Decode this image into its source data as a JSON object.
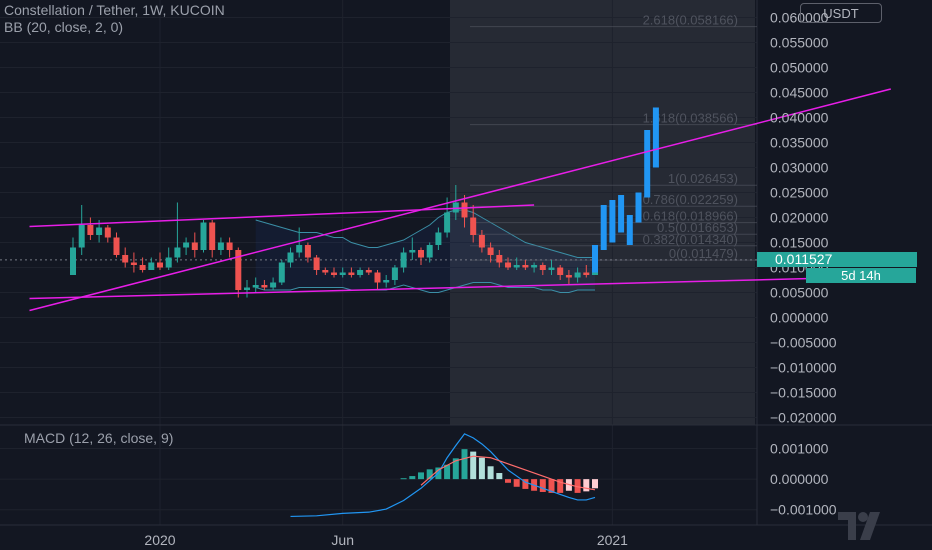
{
  "header": {
    "symbol_line": "Constellation / Tether, 1W, KUCOIN",
    "indicator_line": "BB (20, close, 2, 0)"
  },
  "currency_button": "USDT",
  "last_price_label": "0.011527",
  "countdown_label": "5d 14h",
  "macd_label": "MACD (12, 26, close, 9)",
  "colors": {
    "background": "#131722",
    "up": "#26a69a",
    "down": "#ef5350",
    "projection": "#2196f3",
    "trendline": "#e81ee8",
    "bb_band": "#3b8fa6",
    "macd_line": "#2196f3",
    "signal_line": "#ff6d6d",
    "text": "#b2b5be"
  },
  "chart_data": [
    {
      "type": "candlestick",
      "title": "Constellation / Tether, 1W, KUCOIN",
      "y_axis_labels": [
        "0.060000",
        "0.055000",
        "0.050000",
        "0.045000",
        "0.040000",
        "0.035000",
        "0.030000",
        "0.025000",
        "0.020000",
        "0.015000",
        "0.010000",
        "0.005000",
        "0.000000",
        "−0.005000",
        "−0.010000",
        "−0.015000",
        "−0.020000"
      ],
      "y_axis_values": [
        0.06,
        0.055,
        0.05,
        0.045,
        0.04,
        0.035,
        0.03,
        0.025,
        0.02,
        0.015,
        0.01,
        0.005,
        0,
        -0.005,
        -0.01,
        -0.015,
        -0.02
      ],
      "ylim": [
        -0.0215,
        0.0635
      ],
      "x_ticks": [
        {
          "label": "2020",
          "week": 10
        },
        {
          "label": "Jun",
          "week": 31
        },
        {
          "label": "2021",
          "week": 62
        }
      ],
      "last_price": 0.011527,
      "candles": [
        {
          "week": 0,
          "open": 0.0085,
          "close": 0.014,
          "high": 0.016,
          "low": 0.0085
        },
        {
          "week": 1,
          "open": 0.014,
          "close": 0.0185,
          "high": 0.0225,
          "low": 0.0125
        },
        {
          "week": 2,
          "open": 0.0185,
          "close": 0.0165,
          "high": 0.02,
          "low": 0.0155
        },
        {
          "week": 3,
          "open": 0.0165,
          "close": 0.018,
          "high": 0.0195,
          "low": 0.015
        },
        {
          "week": 4,
          "open": 0.018,
          "close": 0.016,
          "high": 0.0185,
          "low": 0.015
        },
        {
          "week": 5,
          "open": 0.016,
          "close": 0.0125,
          "high": 0.017,
          "low": 0.012
        },
        {
          "week": 6,
          "open": 0.0125,
          "close": 0.011,
          "high": 0.014,
          "low": 0.01
        },
        {
          "week": 7,
          "open": 0.011,
          "close": 0.0105,
          "high": 0.013,
          "low": 0.009
        },
        {
          "week": 8,
          "open": 0.0105,
          "close": 0.0095,
          "high": 0.012,
          "low": 0.009
        },
        {
          "week": 9,
          "open": 0.0095,
          "close": 0.011,
          "high": 0.012,
          "low": 0.0095
        },
        {
          "week": 10,
          "open": 0.011,
          "close": 0.01,
          "high": 0.013,
          "low": 0.0095
        },
        {
          "week": 11,
          "open": 0.01,
          "close": 0.012,
          "high": 0.014,
          "low": 0.0095
        },
        {
          "week": 12,
          "open": 0.012,
          "close": 0.014,
          "high": 0.023,
          "low": 0.011
        },
        {
          "week": 13,
          "open": 0.014,
          "close": 0.015,
          "high": 0.016,
          "low": 0.0125
        },
        {
          "week": 14,
          "open": 0.015,
          "close": 0.0135,
          "high": 0.017,
          "low": 0.012
        },
        {
          "week": 15,
          "open": 0.0135,
          "close": 0.019,
          "high": 0.0195,
          "low": 0.013
        },
        {
          "week": 16,
          "open": 0.019,
          "close": 0.0135,
          "high": 0.0195,
          "low": 0.012
        },
        {
          "week": 17,
          "open": 0.0135,
          "close": 0.015,
          "high": 0.016,
          "low": 0.0125
        },
        {
          "week": 18,
          "open": 0.015,
          "close": 0.0135,
          "high": 0.016,
          "low": 0.012
        },
        {
          "week": 19,
          "open": 0.0135,
          "close": 0.0055,
          "high": 0.014,
          "low": 0.004
        },
        {
          "week": 20,
          "open": 0.0055,
          "close": 0.006,
          "high": 0.0075,
          "low": 0.004
        },
        {
          "week": 21,
          "open": 0.006,
          "close": 0.0065,
          "high": 0.008,
          "low": 0.005
        },
        {
          "week": 22,
          "open": 0.0065,
          "close": 0.006,
          "high": 0.0075,
          "low": 0.0055
        },
        {
          "week": 23,
          "open": 0.006,
          "close": 0.007,
          "high": 0.008,
          "low": 0.0055
        },
        {
          "week": 24,
          "open": 0.007,
          "close": 0.011,
          "high": 0.0115,
          "low": 0.0065
        },
        {
          "week": 25,
          "open": 0.011,
          "close": 0.013,
          "high": 0.014,
          "low": 0.01
        },
        {
          "week": 26,
          "open": 0.013,
          "close": 0.0145,
          "high": 0.018,
          "low": 0.012
        },
        {
          "week": 27,
          "open": 0.0145,
          "close": 0.012,
          "high": 0.015,
          "low": 0.011
        },
        {
          "week": 28,
          "open": 0.012,
          "close": 0.0095,
          "high": 0.0125,
          "low": 0.0085
        },
        {
          "week": 29,
          "open": 0.0095,
          "close": 0.009,
          "high": 0.01,
          "low": 0.0085
        },
        {
          "week": 30,
          "open": 0.009,
          "close": 0.0085,
          "high": 0.01,
          "low": 0.008
        },
        {
          "week": 31,
          "open": 0.0085,
          "close": 0.009,
          "high": 0.01,
          "low": 0.008
        },
        {
          "week": 32,
          "open": 0.009,
          "close": 0.0085,
          "high": 0.01,
          "low": 0.008
        },
        {
          "week": 33,
          "open": 0.0085,
          "close": 0.0095,
          "high": 0.01,
          "low": 0.008
        },
        {
          "week": 34,
          "open": 0.0095,
          "close": 0.009,
          "high": 0.01,
          "low": 0.0085
        },
        {
          "week": 35,
          "open": 0.009,
          "close": 0.007,
          "high": 0.0095,
          "low": 0.0055
        },
        {
          "week": 36,
          "open": 0.007,
          "close": 0.0075,
          "high": 0.0085,
          "low": 0.006
        },
        {
          "week": 37,
          "open": 0.0075,
          "close": 0.01,
          "high": 0.0105,
          "low": 0.0065
        },
        {
          "week": 38,
          "open": 0.01,
          "close": 0.013,
          "high": 0.014,
          "low": 0.009
        },
        {
          "week": 39,
          "open": 0.013,
          "close": 0.0135,
          "high": 0.016,
          "low": 0.0115
        },
        {
          "week": 40,
          "open": 0.0135,
          "close": 0.012,
          "high": 0.014,
          "low": 0.0105
        },
        {
          "week": 41,
          "open": 0.012,
          "close": 0.0145,
          "high": 0.015,
          "low": 0.011
        },
        {
          "week": 42,
          "open": 0.0145,
          "close": 0.017,
          "high": 0.018,
          "low": 0.0135
        },
        {
          "week": 43,
          "open": 0.017,
          "close": 0.021,
          "high": 0.024,
          "low": 0.016
        },
        {
          "week": 44,
          "open": 0.021,
          "close": 0.023,
          "high": 0.0265,
          "low": 0.0195
        },
        {
          "week": 45,
          "open": 0.023,
          "close": 0.02,
          "high": 0.0245,
          "low": 0.018
        },
        {
          "week": 46,
          "open": 0.02,
          "close": 0.0165,
          "high": 0.0225,
          "low": 0.015
        },
        {
          "week": 47,
          "open": 0.0165,
          "close": 0.014,
          "high": 0.0175,
          "low": 0.013
        },
        {
          "week": 48,
          "open": 0.014,
          "close": 0.0125,
          "high": 0.015,
          "low": 0.011
        },
        {
          "week": 49,
          "open": 0.0125,
          "close": 0.011,
          "high": 0.0135,
          "low": 0.01
        },
        {
          "week": 50,
          "open": 0.011,
          "close": 0.01,
          "high": 0.012,
          "low": 0.0095
        },
        {
          "week": 51,
          "open": 0.01,
          "close": 0.0105,
          "high": 0.012,
          "low": 0.0095
        },
        {
          "week": 52,
          "open": 0.0105,
          "close": 0.01,
          "high": 0.0115,
          "low": 0.0095
        },
        {
          "week": 53,
          "open": 0.01,
          "close": 0.0105,
          "high": 0.011,
          "low": 0.009
        },
        {
          "week": 54,
          "open": 0.0105,
          "close": 0.0095,
          "high": 0.011,
          "low": 0.0085
        },
        {
          "week": 55,
          "open": 0.0095,
          "close": 0.01,
          "high": 0.0115,
          "low": 0.0085
        },
        {
          "week": 56,
          "open": 0.01,
          "close": 0.0085,
          "high": 0.0105,
          "low": 0.0075
        },
        {
          "week": 57,
          "open": 0.0085,
          "close": 0.008,
          "high": 0.0095,
          "low": 0.0065
        },
        {
          "week": 58,
          "open": 0.008,
          "close": 0.009,
          "high": 0.01,
          "low": 0.007
        },
        {
          "week": 59,
          "open": 0.009,
          "close": 0.0085,
          "high": 0.0105,
          "low": 0.008
        },
        {
          "week": 60,
          "open": 0.0085,
          "close": 0.0115,
          "high": 0.0125,
          "low": 0.0085
        }
      ],
      "projection_bars": [
        {
          "week": 60,
          "low": 0.009,
          "high": 0.0145
        },
        {
          "week": 61,
          "low": 0.0135,
          "high": 0.0225
        },
        {
          "week": 62,
          "low": 0.015,
          "high": 0.0235
        },
        {
          "week": 63,
          "low": 0.017,
          "high": 0.0245
        },
        {
          "week": 64,
          "low": 0.0145,
          "high": 0.0205
        },
        {
          "week": 65,
          "low": 0.019,
          "high": 0.025
        },
        {
          "week": 66,
          "low": 0.024,
          "high": 0.0375
        },
        {
          "week": 67,
          "low": 0.03,
          "high": 0.042
        }
      ],
      "fibonacci_labels": [
        {
          "label": "2.618(0.058166)",
          "value": 0.058166
        },
        {
          "label": "1.618(0.038566)",
          "value": 0.038566
        },
        {
          "label": "1(0.026453)",
          "value": 0.026453
        },
        {
          "label": "0.786(0.022259)",
          "value": 0.022259
        },
        {
          "label": "0.618(0.018966)",
          "value": 0.018966
        },
        {
          "label": "0.5(0.016653)",
          "value": 0.016653
        },
        {
          "label": "0.382(0.014340)",
          "value": 0.01434
        },
        {
          "label": "0(0.011479)",
          "value": 0.011479
        }
      ],
      "trendlines": [
        {
          "from": [
            -5,
            0.0038
          ],
          "to": [
            94,
            0.0082
          ]
        },
        {
          "from": [
            -5,
            0.0014
          ],
          "to": [
            94,
            0.0457
          ]
        },
        {
          "from": [
            -5,
            0.0182
          ],
          "to": [
            53,
            0.0225
          ]
        }
      ],
      "bollinger": {
        "start_week": 21,
        "upper": [
          0.0195,
          0.019,
          0.0185,
          0.018,
          0.0175,
          0.017,
          0.017,
          0.017,
          0.0165,
          0.016,
          0.016,
          0.015,
          0.0145,
          0.014,
          0.014,
          0.0145,
          0.015,
          0.0155,
          0.0165,
          0.0175,
          0.0185,
          0.02,
          0.021,
          0.0215,
          0.0215,
          0.021,
          0.02,
          0.019,
          0.018,
          0.017,
          0.016,
          0.015,
          0.0145,
          0.014,
          0.0135,
          0.013,
          0.0125,
          0.012,
          0.012,
          0.012
        ],
        "lower": [
          0.006,
          0.0055,
          0.0055,
          0.0055,
          0.0055,
          0.006,
          0.006,
          0.006,
          0.006,
          0.006,
          0.006,
          0.0055,
          0.0055,
          0.0055,
          0.0055,
          0.0055,
          0.006,
          0.0065,
          0.006,
          0.0055,
          0.005,
          0.005,
          0.0055,
          0.006,
          0.0065,
          0.007,
          0.007,
          0.007,
          0.0065,
          0.006,
          0.006,
          0.006,
          0.006,
          0.0055,
          0.0055,
          0.005,
          0.005,
          0.0055,
          0.0055,
          0.0055
        ]
      }
    },
    {
      "type": "macd",
      "title": "MACD (12, 26, close, 9)",
      "y_axis_labels": [
        "0.001000",
        "0.000000",
        "−0.001000"
      ],
      "y_axis_values": [
        0.001,
        0,
        -0.001
      ],
      "ylim": [
        -0.0015,
        0.00177
      ],
      "histogram": [
        {
          "week": 38,
          "value": 3e-05
        },
        {
          "week": 39,
          "value": 0.0001
        },
        {
          "week": 40,
          "value": 0.00022
        },
        {
          "week": 41,
          "value": 0.00032
        },
        {
          "week": 42,
          "value": 0.00038
        },
        {
          "week": 43,
          "value": 0.00047
        },
        {
          "week": 44,
          "value": 0.00068
        },
        {
          "week": 45,
          "value": 0.00098
        },
        {
          "week": 46,
          "value": 0.0009
        },
        {
          "week": 47,
          "value": 0.0007
        },
        {
          "week": 48,
          "value": 0.00042
        },
        {
          "week": 49,
          "value": 0.0002
        },
        {
          "week": 50,
          "value": -0.00012
        },
        {
          "week": 51,
          "value": -0.00025
        },
        {
          "week": 52,
          "value": -0.00032
        },
        {
          "week": 53,
          "value": -0.00038
        },
        {
          "week": 54,
          "value": -0.00042
        },
        {
          "week": 55,
          "value": -0.00045
        },
        {
          "week": 56,
          "value": -0.00045
        },
        {
          "week": 57,
          "value": -0.00038
        },
        {
          "week": 58,
          "value": -0.00045
        },
        {
          "week": 59,
          "value": -0.0004
        },
        {
          "week": 60,
          "value": -0.0003
        }
      ],
      "macd_line": [
        [
          25,
          -0.00122
        ],
        [
          28,
          -0.0012
        ],
        [
          31,
          -0.00112
        ],
        [
          34,
          -0.00108
        ],
        [
          36,
          -0.00098
        ],
        [
          38,
          -0.0007
        ],
        [
          40,
          -0.0003
        ],
        [
          42,
          0.0002
        ],
        [
          43,
          0.0007
        ],
        [
          44,
          0.0011
        ],
        [
          45,
          0.00148
        ],
        [
          46,
          0.00135
        ],
        [
          47,
          0.00115
        ],
        [
          48,
          0.0009
        ],
        [
          49,
          0.0006
        ],
        [
          50,
          0.0003
        ],
        [
          51,
          0.0001
        ],
        [
          52,
          -0.0001
        ],
        [
          53,
          -0.0002
        ],
        [
          54,
          -0.0003
        ],
        [
          55,
          -0.0004
        ],
        [
          56,
          -0.0005
        ],
        [
          57,
          -0.0006
        ],
        [
          58,
          -0.00068
        ],
        [
          59,
          -0.00068
        ],
        [
          60,
          -0.0006
        ]
      ],
      "signal_line": [
        [
          40,
          -0.0002
        ],
        [
          42,
          0.0003
        ],
        [
          44,
          0.0006
        ],
        [
          46,
          0.00075
        ],
        [
          48,
          0.0007
        ],
        [
          50,
          0.0005
        ],
        [
          52,
          0.0003
        ],
        [
          54,
          0.0001
        ],
        [
          56,
          -0.0001
        ],
        [
          58,
          -0.00025
        ],
        [
          60,
          -0.00035
        ]
      ]
    }
  ]
}
